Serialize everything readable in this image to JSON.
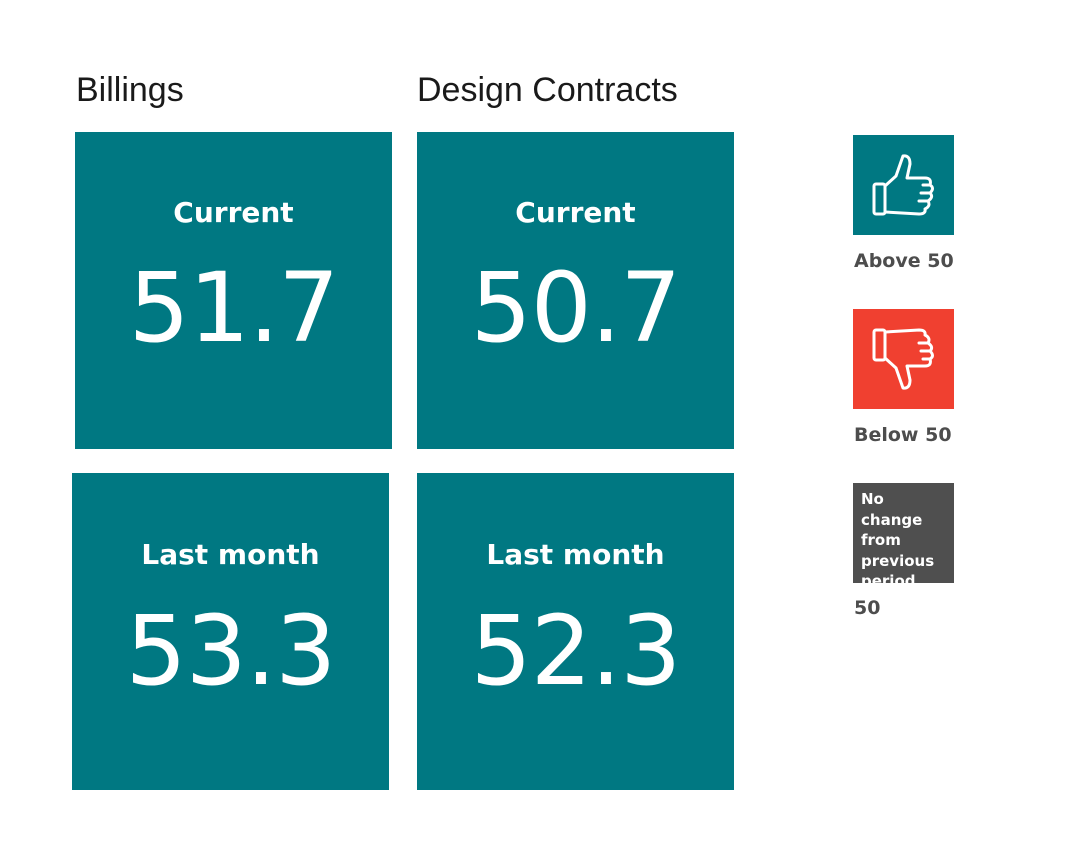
{
  "columns": [
    {
      "title": "Billings",
      "current_label": "Current",
      "current_value": "51.7",
      "last_label": "Last month",
      "last_value": "53.3"
    },
    {
      "title": "Design Contracts",
      "current_label": "Current",
      "current_value": "50.7",
      "last_label": "Last month",
      "last_value": "52.3"
    }
  ],
  "legend": {
    "above": {
      "caption": "Above 50",
      "icon": "thumbs-up-icon",
      "color": "#007882"
    },
    "below": {
      "caption": "Below 50",
      "icon": "thumbs-down-icon",
      "color": "#f04030"
    },
    "no_change": {
      "box_text": "No change from previous period",
      "caption": "50",
      "color": "#4f4f4f"
    }
  },
  "colors": {
    "tile": "#007882"
  }
}
